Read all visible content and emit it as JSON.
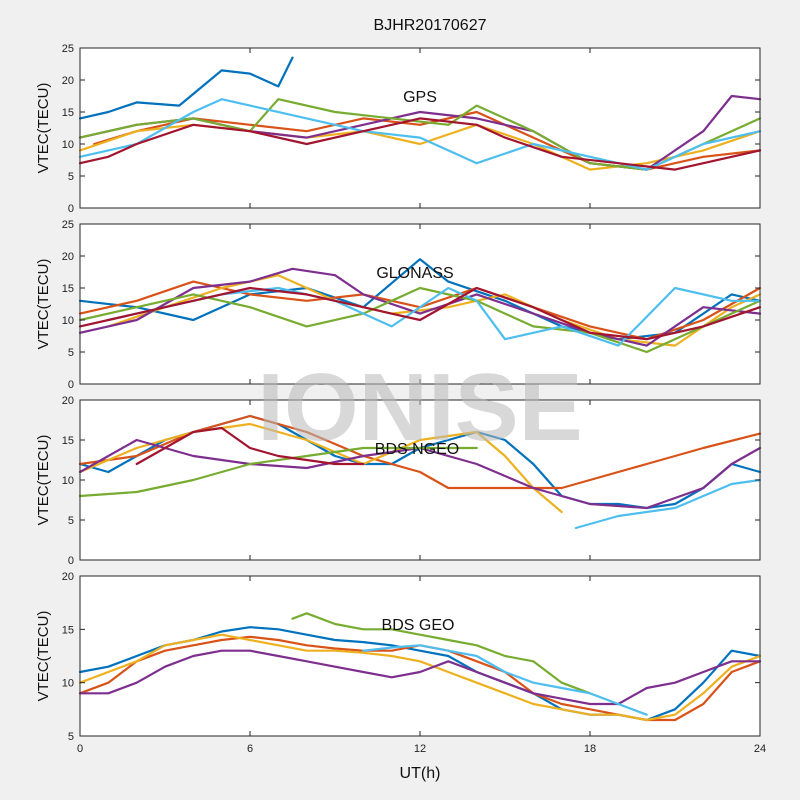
{
  "page": {
    "title": "BJHR20170627",
    "xlabel": "UT(h)",
    "watermark": "IONISE"
  },
  "colors": [
    "#0072BD",
    "#D95319",
    "#EDB120",
    "#7E2F8E",
    "#77AC30",
    "#4DBEEE",
    "#A2142F"
  ],
  "chart_data": [
    {
      "type": "line",
      "label": "GPS",
      "ylabel": "VTEC(TECU)",
      "xlim": [
        0,
        24
      ],
      "ylim": [
        0,
        25
      ],
      "xticks": [
        0,
        6,
        12,
        18,
        24
      ],
      "yticks": [
        0,
        5,
        10,
        15,
        20,
        25
      ],
      "series": [
        {
          "x": [
            0,
            1,
            2,
            3.5,
            5,
            6,
            7,
            7.5
          ],
          "y": [
            14,
            15,
            16.5,
            16,
            21.5,
            21,
            19,
            23.5
          ]
        },
        {
          "x": [
            0.5,
            2,
            4,
            6,
            8,
            10,
            12,
            14,
            16,
            18,
            20,
            22,
            24
          ],
          "y": [
            10,
            12,
            14,
            13,
            12,
            14,
            13,
            15,
            11,
            7,
            6,
            8,
            9
          ]
        },
        {
          "x": [
            0,
            2,
            4,
            6,
            8,
            10,
            12,
            14,
            16,
            18,
            20,
            22,
            24
          ],
          "y": [
            9,
            12,
            13,
            12,
            11,
            12,
            10,
            13,
            10,
            6,
            7,
            9,
            12
          ]
        },
        {
          "x": [
            0,
            2,
            4,
            6,
            8,
            10,
            12,
            14,
            16,
            18,
            20,
            22,
            23,
            24
          ],
          "y": [
            11,
            13,
            14,
            12,
            11,
            13,
            15,
            14,
            12,
            7,
            6,
            12,
            17.5,
            17
          ]
        },
        {
          "x": [
            0,
            2,
            4,
            6,
            7,
            9,
            11,
            13,
            14,
            16,
            18,
            20,
            22,
            24
          ],
          "y": [
            11,
            13,
            14,
            12,
            17,
            15,
            14,
            13,
            16,
            12,
            7,
            6,
            10,
            14
          ]
        },
        {
          "x": [
            0,
            2,
            4,
            5,
            6,
            8,
            10,
            12,
            13,
            14,
            16,
            18,
            20,
            22,
            24
          ],
          "y": [
            8,
            10,
            15,
            17,
            16,
            14,
            12,
            11,
            9,
            7,
            10,
            8,
            6,
            10,
            12
          ]
        },
        {
          "x": [
            0,
            1,
            2,
            4,
            6,
            8,
            10,
            12,
            14,
            15,
            17,
            19,
            21,
            24
          ],
          "y": [
            7,
            8,
            10,
            13,
            12,
            10,
            12,
            14,
            13,
            11,
            8,
            7,
            6,
            9
          ]
        }
      ]
    },
    {
      "type": "line",
      "label": "GLONASS",
      "ylabel": "VTEC(TECU)",
      "xlim": [
        0,
        24
      ],
      "ylim": [
        0,
        25
      ],
      "xticks": [
        0,
        6,
        12,
        18,
        24
      ],
      "yticks": [
        0,
        5,
        10,
        15,
        20,
        25
      ],
      "series": [
        {
          "x": [
            0,
            2,
            4,
            6,
            8,
            10,
            12,
            13,
            15,
            17,
            19,
            21,
            23,
            24
          ],
          "y": [
            13,
            12,
            10,
            14,
            15,
            12,
            19.5,
            16,
            13,
            9,
            7,
            8,
            14,
            13
          ]
        },
        {
          "x": [
            0,
            2,
            4,
            6,
            8,
            10,
            12,
            14,
            16,
            18,
            20,
            22,
            24
          ],
          "y": [
            11,
            13,
            16,
            14,
            13,
            14,
            12,
            15,
            12,
            9,
            7,
            10,
            15
          ]
        },
        {
          "x": [
            1,
            3,
            5,
            7,
            9,
            11,
            13,
            15,
            17,
            19,
            21,
            23,
            24
          ],
          "y": [
            9,
            12,
            15,
            17,
            13,
            11,
            12,
            14,
            10,
            7,
            6,
            12,
            14
          ]
        },
        {
          "x": [
            0,
            2,
            4,
            6,
            7.5,
            9,
            10,
            12,
            14,
            16,
            18,
            20,
            22,
            24
          ],
          "y": [
            8,
            10,
            15,
            16,
            18,
            17,
            14,
            11,
            14,
            11,
            8,
            6,
            12,
            11
          ]
        },
        {
          "x": [
            0,
            2,
            4,
            6,
            8,
            10,
            12,
            14,
            16,
            18,
            20,
            22,
            24
          ],
          "y": [
            10,
            12,
            14,
            12,
            9,
            11,
            15,
            13,
            9,
            8,
            5,
            9,
            13
          ]
        },
        {
          "x": [
            1,
            3,
            5,
            7,
            9,
            11,
            13,
            14,
            15,
            17,
            19,
            21,
            23,
            24
          ],
          "y": [
            10,
            12,
            14,
            15,
            13,
            9,
            15,
            13,
            7,
            9,
            6,
            15,
            13,
            13
          ]
        },
        {
          "x": [
            0,
            2,
            4,
            6,
            8,
            10,
            12,
            14,
            16,
            18,
            20,
            22,
            24
          ],
          "y": [
            9,
            11,
            13,
            15,
            14,
            12,
            10,
            15,
            12,
            8,
            7,
            9,
            12
          ]
        }
      ]
    },
    {
      "type": "line",
      "label": "BDS NGEO",
      "ylabel": "VTEC(TECU)",
      "xlim": [
        0,
        24
      ],
      "ylim": [
        0,
        20
      ],
      "xticks": [
        0,
        6,
        12,
        18,
        24
      ],
      "yticks": [
        0,
        5,
        10,
        15,
        20
      ],
      "series": [
        {
          "x": [
            0,
            1,
            2,
            3,
            4,
            5,
            6,
            7,
            8,
            9,
            10,
            11,
            12,
            13,
            14,
            15,
            16,
            17,
            18,
            19,
            20,
            21,
            22,
            23,
            24
          ],
          "y": [
            12,
            11,
            13,
            15,
            16,
            17,
            18,
            17,
            15,
            13,
            12,
            12,
            14,
            15,
            16,
            15,
            12,
            8,
            7,
            7,
            6.5,
            7,
            9,
            12,
            11
          ]
        },
        {
          "x": [
            0,
            2,
            4,
            6,
            8,
            10,
            12,
            13,
            17,
            18,
            20,
            22,
            24
          ],
          "y": [
            12,
            13,
            16,
            18,
            16,
            13,
            11,
            9,
            9,
            10,
            12,
            14,
            15.8
          ]
        },
        {
          "x": [
            0,
            2,
            4,
            6,
            8,
            10,
            12,
            14,
            15,
            16,
            17
          ],
          "y": [
            11,
            14,
            16,
            17,
            15,
            12,
            15,
            16,
            13,
            9,
            6
          ]
        },
        {
          "x": [
            0,
            2,
            4,
            6,
            8,
            10,
            12,
            14,
            16,
            18,
            20,
            22,
            23,
            24
          ],
          "y": [
            11,
            15,
            13,
            12,
            11.5,
            13,
            14,
            12,
            9,
            7,
            6.5,
            9,
            12,
            14
          ]
        },
        {
          "x": [
            0,
            2,
            4,
            6,
            8,
            10,
            12,
            14
          ],
          "y": [
            8,
            8.5,
            10,
            12,
            13,
            14,
            14,
            14
          ]
        },
        {
          "x": [
            17.5,
            19,
            21,
            23,
            24
          ],
          "y": [
            4,
            5.5,
            6.5,
            9.5,
            10
          ]
        },
        {
          "x": [
            2,
            3,
            4,
            5,
            6,
            7,
            8,
            9,
            10
          ],
          "y": [
            12,
            14,
            16,
            16.5,
            14,
            13,
            12.5,
            12,
            12
          ]
        }
      ]
    },
    {
      "type": "line",
      "label": "BDS GEO",
      "ylabel": "VTEC(TECU)",
      "xlim": [
        0,
        24
      ],
      "ylim": [
        5,
        20
      ],
      "xticks": [
        0,
        6,
        12,
        18,
        24
      ],
      "yticks": [
        5,
        10,
        15,
        20
      ],
      "series": [
        {
          "x": [
            0,
            1,
            2,
            3,
            4,
            5,
            6,
            7,
            8,
            9,
            10,
            11,
            12,
            13,
            14,
            15,
            16,
            17,
            18,
            19,
            20,
            21,
            22,
            23,
            24
          ],
          "y": [
            11,
            11.5,
            12.5,
            13.5,
            14,
            14.8,
            15.2,
            15,
            14.5,
            14,
            13.8,
            13.5,
            13,
            12.5,
            11,
            10,
            9,
            7.5,
            7,
            7,
            6.5,
            7.5,
            10,
            13,
            12.5
          ]
        },
        {
          "x": [
            0,
            1,
            2,
            3,
            4,
            5,
            6,
            7,
            8,
            9,
            10,
            11,
            12,
            13,
            14,
            15,
            16,
            17,
            18,
            19,
            20,
            21,
            22,
            23,
            24
          ],
          "y": [
            9,
            10,
            12,
            13,
            13.5,
            14,
            14.3,
            14,
            13.5,
            13.2,
            13,
            13,
            13.5,
            13,
            12,
            11,
            9,
            8,
            7.5,
            7,
            6.5,
            6.5,
            8,
            11,
            12
          ]
        },
        {
          "x": [
            0,
            1,
            2,
            3,
            4,
            5,
            6,
            7,
            8,
            9,
            10,
            11,
            12,
            13,
            14,
            15,
            16,
            17,
            18,
            19,
            20,
            21,
            22,
            23,
            24
          ],
          "y": [
            10,
            11,
            12,
            13.5,
            14,
            14.5,
            14,
            13.5,
            13,
            13,
            12.8,
            12.5,
            12,
            11,
            10,
            9,
            8,
            7.5,
            7,
            7,
            6.5,
            7,
            9,
            11.5,
            12.5
          ]
        },
        {
          "x": [
            0,
            1,
            2,
            3,
            4,
            5,
            6,
            7,
            8,
            9,
            10,
            11,
            12,
            13,
            14,
            15,
            16,
            17,
            18,
            19,
            20,
            21,
            22,
            23,
            24
          ],
          "y": [
            9,
            9,
            10,
            11.5,
            12.5,
            13,
            13,
            12.5,
            12,
            11.5,
            11,
            10.5,
            11,
            12,
            11,
            10,
            9,
            8.5,
            8,
            8,
            9.5,
            10,
            11,
            12,
            12
          ]
        },
        {
          "x": [
            7.5,
            8,
            9,
            10,
            11,
            12,
            13,
            14,
            15,
            16,
            17,
            18
          ],
          "y": [
            16,
            16.5,
            15.5,
            15,
            15,
            14.5,
            14,
            13.5,
            12.5,
            12,
            10,
            9
          ]
        },
        {
          "x": [
            10,
            11,
            12,
            13,
            14,
            15,
            16,
            17,
            18,
            19,
            20
          ],
          "y": [
            13,
            13.3,
            13.5,
            13,
            12.5,
            11,
            10,
            9.5,
            9,
            8,
            7
          ]
        }
      ]
    }
  ]
}
